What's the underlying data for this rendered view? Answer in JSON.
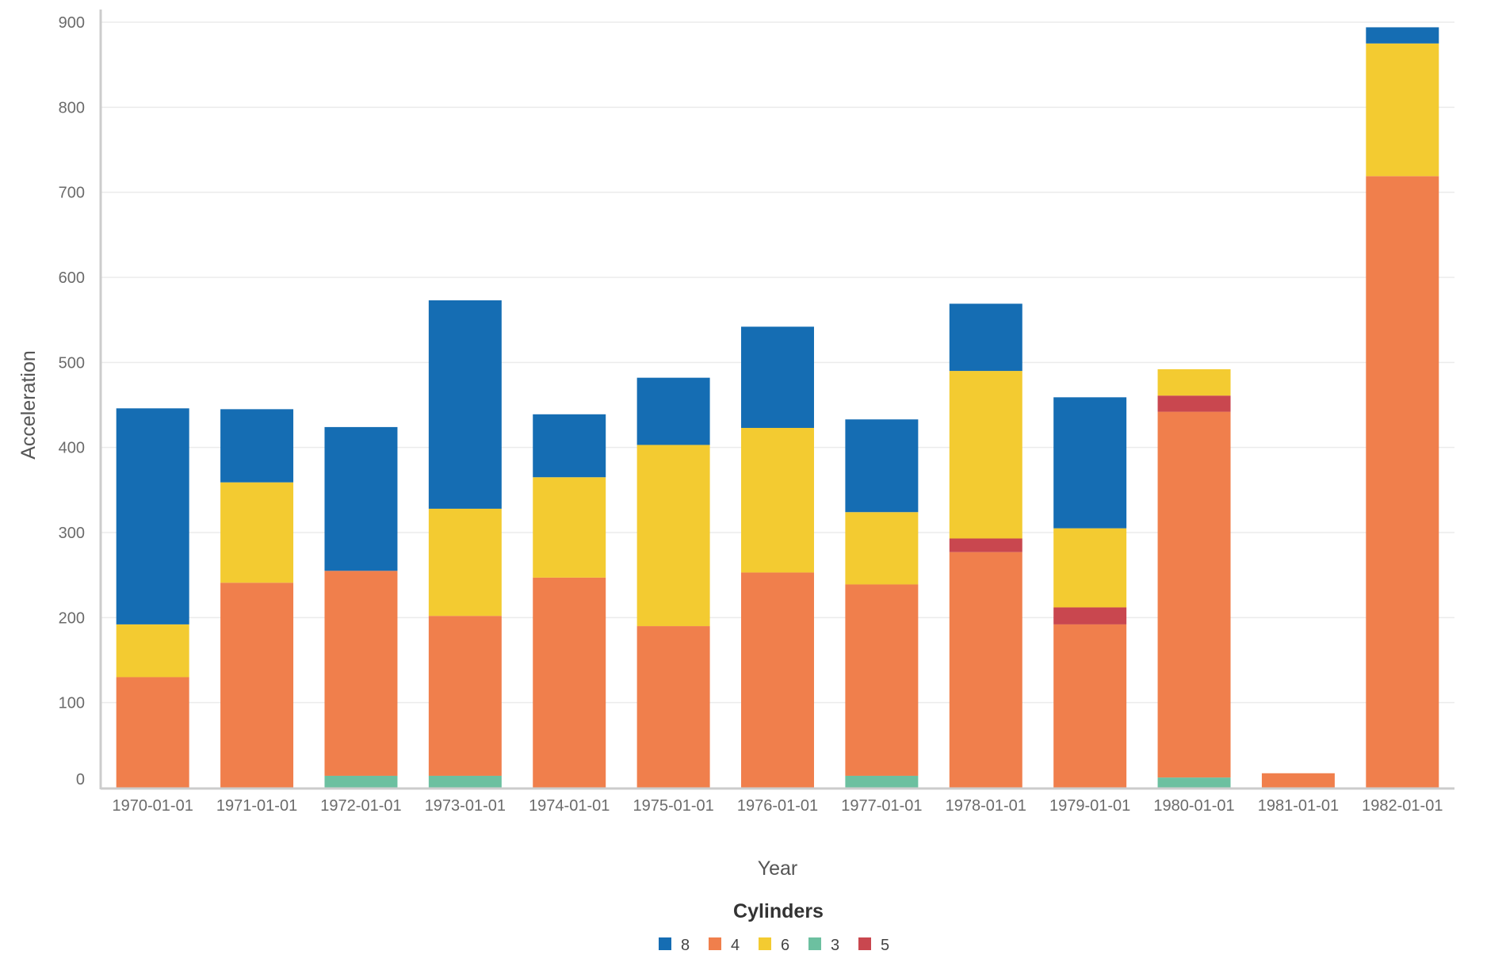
{
  "chart_data": {
    "type": "bar",
    "stacked": true,
    "categories": [
      "1970-01-01",
      "1971-01-01",
      "1972-01-01",
      "1973-01-01",
      "1974-01-01",
      "1975-01-01",
      "1976-01-01",
      "1977-01-01",
      "1978-01-01",
      "1979-01-01",
      "1980-01-01",
      "1981-01-01",
      "1982-01-01"
    ],
    "series": [
      {
        "name": "3",
        "color": "#6cc0a0",
        "values": [
          0,
          0,
          14,
          14,
          0,
          0,
          0,
          14,
          0,
          0,
          12,
          0,
          0
        ]
      },
      {
        "name": "4",
        "color": "#f07f4c",
        "values": [
          130,
          241,
          241,
          188,
          247,
          190,
          253,
          225,
          277,
          192,
          430,
          17,
          719
        ]
      },
      {
        "name": "5",
        "color": "#c9474f",
        "values": [
          0,
          0,
          0,
          0,
          0,
          0,
          0,
          0,
          16,
          20,
          19,
          0,
          0
        ]
      },
      {
        "name": "6",
        "color": "#f3cb31",
        "values": [
          62,
          118,
          0,
          126,
          118,
          213,
          170,
          85,
          197,
          93,
          31,
          0,
          156
        ]
      },
      {
        "name": "8",
        "color": "#156db3",
        "values": [
          254,
          86,
          169,
          245,
          74,
          79,
          119,
          109,
          79,
          154,
          0,
          0,
          19
        ]
      }
    ],
    "xlabel": "Year",
    "ylabel": "Acceleration",
    "ylim": [
      0,
      900
    ],
    "yticks": [
      0,
      100,
      200,
      300,
      400,
      500,
      600,
      700,
      800,
      900
    ],
    "grid": true,
    "legend": {
      "title": "Cylinders",
      "position": "bottom-center",
      "order": [
        "8",
        "4",
        "6",
        "3",
        "5"
      ]
    }
  }
}
